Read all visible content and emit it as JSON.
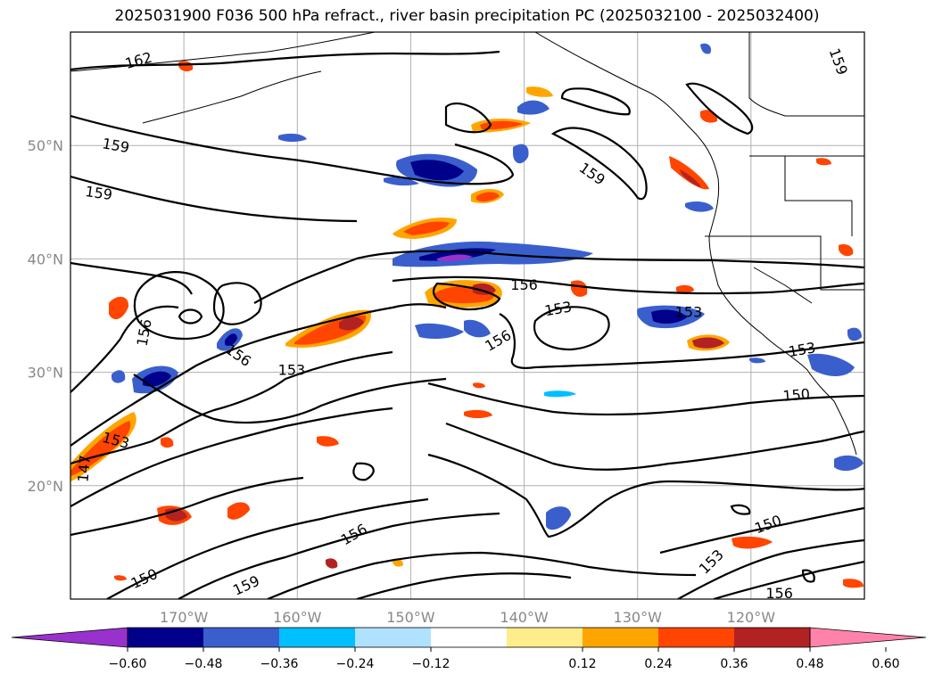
{
  "title": "2025031900 F036 500 hPa refract., river basin precipitation PC (2025032100 - 2025032400)",
  "map": {
    "projection": "PlateCarree",
    "lon_range": [
      -180,
      -110
    ],
    "lat_range": [
      10,
      60
    ],
    "gridlines": true,
    "lon_ticks": [
      {
        "lon": -170,
        "label": "170°W"
      },
      {
        "lon": -160,
        "label": "160°W"
      },
      {
        "lon": -150,
        "label": "150°W"
      },
      {
        "lon": -140,
        "label": "140°W"
      },
      {
        "lon": -130,
        "label": "130°W"
      },
      {
        "lon": -120,
        "label": "120°W"
      }
    ],
    "lat_ticks": [
      {
        "lat": 20,
        "label": "20°N"
      },
      {
        "lat": 30,
        "label": "30°N"
      },
      {
        "lat": 40,
        "label": "40°N"
      },
      {
        "lat": 50,
        "label": "50°N"
      }
    ],
    "contour_labels": [
      {
        "text": "162",
        "lon": -174,
        "lat": 57.5,
        "rot": -15
      },
      {
        "text": "159",
        "lon": -176,
        "lat": 50,
        "rot": 10
      },
      {
        "text": "159",
        "lon": -177.5,
        "lat": 45.8,
        "rot": 8
      },
      {
        "text": "159",
        "lon": -134,
        "lat": 47.5,
        "rot": 35
      },
      {
        "text": "159",
        "lon": -112.3,
        "lat": 57.4,
        "rot": 70
      },
      {
        "text": "159",
        "lon": -164.5,
        "lat": 11.2,
        "rot": -25
      },
      {
        "text": "156",
        "lon": -173.5,
        "lat": 33.5,
        "rot": -80
      },
      {
        "text": "156",
        "lon": -165.2,
        "lat": 31.5,
        "rot": 35
      },
      {
        "text": "156",
        "lon": -140,
        "lat": 37.7,
        "rot": 0
      },
      {
        "text": "156",
        "lon": -142.3,
        "lat": 32.8,
        "rot": -30
      },
      {
        "text": "156",
        "lon": -155,
        "lat": 15.7,
        "rot": -30
      },
      {
        "text": "156",
        "lon": -117.5,
        "lat": 10.5,
        "rot": 0
      },
      {
        "text": "153",
        "lon": -160.5,
        "lat": 30.2,
        "rot": 0
      },
      {
        "text": "153",
        "lon": -137,
        "lat": 35.6,
        "rot": -10
      },
      {
        "text": "153",
        "lon": -125.5,
        "lat": 35.3,
        "rot": 0
      },
      {
        "text": "153",
        "lon": -115.5,
        "lat": 32,
        "rot": -10
      },
      {
        "text": "153",
        "lon": -176,
        "lat": 24,
        "rot": 15
      },
      {
        "text": "153",
        "lon": -123.5,
        "lat": 13.3,
        "rot": -45
      },
      {
        "text": "150",
        "lon": -116,
        "lat": 28,
        "rot": -5
      },
      {
        "text": "150",
        "lon": -118.5,
        "lat": 16.6,
        "rot": -20
      },
      {
        "text": "150",
        "lon": -173.5,
        "lat": 11.8,
        "rot": -25
      },
      {
        "text": "147",
        "lon": -178.8,
        "lat": 21.5,
        "rot": -85
      }
    ]
  },
  "colorbar": {
    "extend": "both",
    "colors": [
      "#9932cc",
      "#00008b",
      "#3a5fcd",
      "#00bfff",
      "#b0e2ff",
      "#ffffff",
      "#ffec8b",
      "#ffa500",
      "#ff4500",
      "#b22222",
      "#ff82ab"
    ],
    "ticks": [
      "−0.60",
      "−0.48",
      "−0.36",
      "−0.24",
      "−0.12",
      "0.12",
      "0.24",
      "0.36",
      "0.48",
      "0.60"
    ]
  },
  "colors": {
    "contour": "#000000",
    "gridline": "#b0b0b0",
    "tick_label": "#888888"
  }
}
